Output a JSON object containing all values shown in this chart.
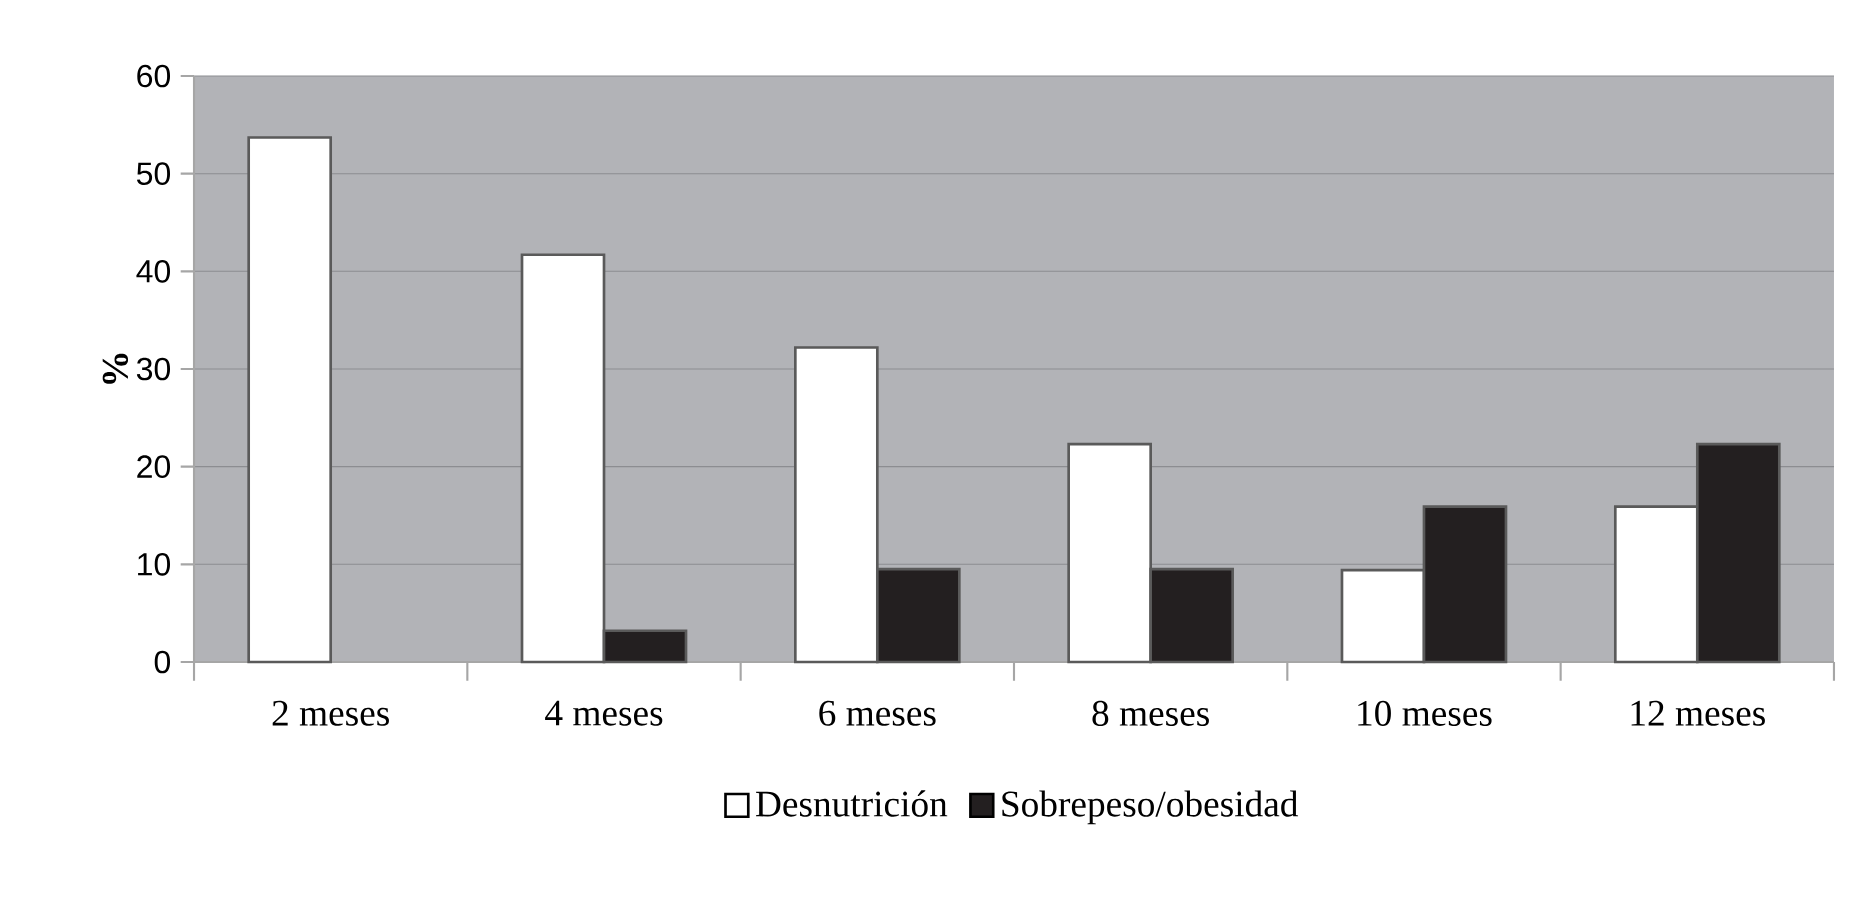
{
  "chart_data": {
    "type": "bar",
    "ylabel": "%",
    "categories": [
      "2 meses",
      "4 meses",
      "6 meses",
      "8 meses",
      "10 meses",
      "12 meses"
    ],
    "series": [
      {
        "name": "Desnutrición",
        "color": "#ffffff",
        "values": [
          53.7,
          41.7,
          32.2,
          22.3,
          9.4,
          15.9
        ]
      },
      {
        "name": "Sobrepeso/obesidad",
        "color": "#231f20",
        "values": [
          null,
          3.2,
          9.5,
          9.5,
          15.9,
          22.3
        ]
      }
    ],
    "ylim": [
      0,
      60
    ],
    "yticks": [
      0,
      10,
      20,
      30,
      40,
      50,
      60
    ],
    "grid": "y",
    "legend": "bottom"
  }
}
